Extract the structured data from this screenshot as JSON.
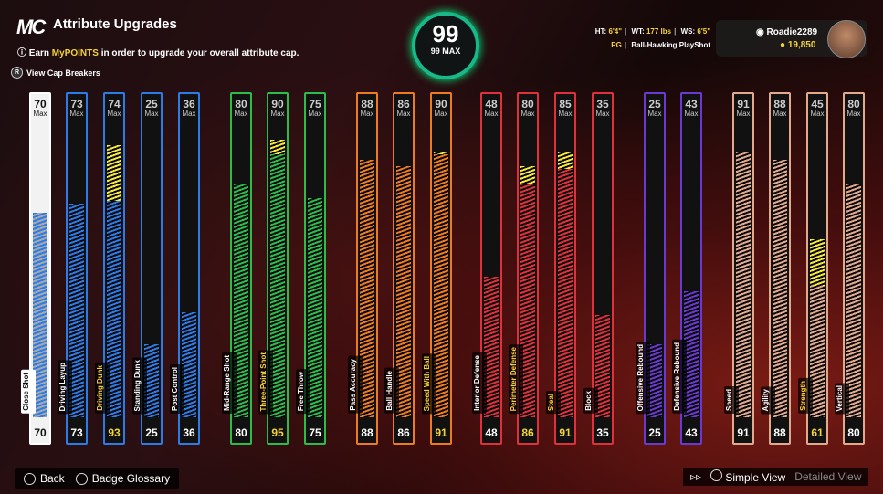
{
  "header": {
    "logo": "MC",
    "title": "Attribute Upgrades",
    "earn_prefix": "Earn ",
    "earn_highlight": "MyPOINTS",
    "earn_suffix": " in order to upgrade your overall attribute cap.",
    "cap_breakers": "View Cap Breakers"
  },
  "overall": {
    "value": "99",
    "caption": "99 MAX"
  },
  "player": {
    "ht_label": "HT:",
    "ht": "6'4\"",
    "wt_label": "WT:",
    "wt": "177 lbs",
    "ws_label": "WS:",
    "ws": "6'5\"",
    "position": "PG",
    "playshot": "Ball-Hawking PlayShot",
    "username": "Roadie2289",
    "coins": "19,850"
  },
  "colors": {
    "inside": "#2d7be6",
    "mid": "#2dbb4a",
    "play": "#ee7a22",
    "def": "#e0303a",
    "reb": "#6a3ad0",
    "phys": "#e3a98c",
    "cap": "#f6e83a"
  },
  "attributes": [
    {
      "label": "Close Shot",
      "max": "70",
      "current": "70",
      "cap": 70,
      "group": "inside",
      "sel": true
    },
    {
      "label": "Driving Layup",
      "max": "73",
      "current": "73",
      "cap": 73,
      "group": "inside"
    },
    {
      "label": "Driving Dunk",
      "max": "74",
      "current": "93",
      "cap": 93,
      "group": "inside",
      "yellow": true
    },
    {
      "label": "Standing Dunk",
      "max": "25",
      "current": "25",
      "cap": 25,
      "group": "inside"
    },
    {
      "label": "Post Control",
      "max": "36",
      "current": "36",
      "cap": 36,
      "group": "inside"
    },
    {
      "label": "Mid-Range Shot",
      "max": "80",
      "current": "80",
      "cap": 80,
      "group": "mid"
    },
    {
      "label": "Three-Point Shot",
      "max": "90",
      "current": "95",
      "cap": 95,
      "group": "mid",
      "yellow": true
    },
    {
      "label": "Free Throw",
      "max": "75",
      "current": "75",
      "cap": 75,
      "group": "mid"
    },
    {
      "label": "Pass Accuracy",
      "max": "88",
      "current": "88",
      "cap": 88,
      "group": "play"
    },
    {
      "label": "Ball Handle",
      "max": "86",
      "current": "86",
      "cap": 86,
      "group": "play"
    },
    {
      "label": "Speed With Ball",
      "max": "90",
      "current": "91",
      "cap": 91,
      "group": "play",
      "yellow": true
    },
    {
      "label": "Interior Defense",
      "max": "48",
      "current": "48",
      "cap": 48,
      "group": "def"
    },
    {
      "label": "Perimeter Defense",
      "max": "80",
      "current": "86",
      "cap": 86,
      "group": "def",
      "yellow": true
    },
    {
      "label": "Steal",
      "max": "85",
      "current": "91",
      "cap": 91,
      "group": "def",
      "yellow": true
    },
    {
      "label": "Block",
      "max": "35",
      "current": "35",
      "cap": 35,
      "group": "def"
    },
    {
      "label": "Offensive Rebound",
      "max": "25",
      "current": "25",
      "cap": 25,
      "group": "reb"
    },
    {
      "label": "Defensive Rebound",
      "max": "43",
      "current": "43",
      "cap": 43,
      "group": "reb"
    },
    {
      "label": "Speed",
      "max": "91",
      "current": "91",
      "cap": 91,
      "group": "phys"
    },
    {
      "label": "Agility",
      "max": "88",
      "current": "88",
      "cap": 88,
      "group": "phys"
    },
    {
      "label": "Strength",
      "max": "45",
      "current": "61",
      "cap": 61,
      "group": "phys",
      "yellow": true
    },
    {
      "label": "Vertical",
      "max": "80",
      "current": "80",
      "cap": 80,
      "group": "phys"
    }
  ],
  "max_label": "Max",
  "footer": {
    "back": "Back",
    "glossary": "Badge Glossary",
    "simple": "Simple View",
    "detailed": "Detailed View"
  }
}
